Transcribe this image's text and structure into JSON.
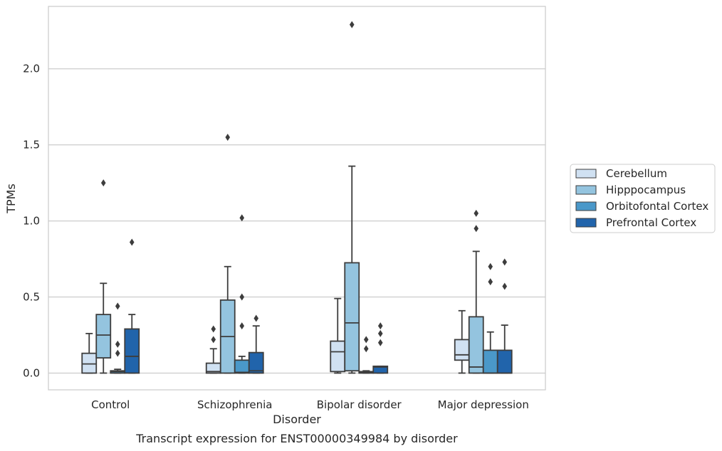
{
  "chart_data": {
    "type": "box",
    "title": "",
    "caption": "Transcript expression for ENST00000349984 by disorder",
    "xlabel": "Disorder",
    "ylabel": "TPMs",
    "ylim": [
      -0.11,
      2.41
    ],
    "yticks": [
      "0.0",
      "0.5",
      "1.0",
      "1.5",
      "2.0"
    ],
    "grid": "horizontal",
    "legend_position": "right",
    "categories": [
      "Control",
      "Schizophrenia",
      "Bipolar disorder",
      "Major depression"
    ],
    "series": [
      {
        "name": "Cerebellum",
        "color": "#d0e1f2",
        "boxes": [
          {
            "whislo": 0.0,
            "q1": 0.0,
            "med": 0.06,
            "q3": 0.13,
            "whishi": 0.26,
            "fliers": []
          },
          {
            "whislo": 0.0,
            "q1": 0.0,
            "med": 0.01,
            "q3": 0.065,
            "whishi": 0.16,
            "fliers": [
              0.22,
              0.29
            ]
          },
          {
            "whislo": 0.0,
            "q1": 0.01,
            "med": 0.14,
            "q3": 0.21,
            "whishi": 0.49,
            "fliers": []
          },
          {
            "whislo": 0.0,
            "q1": 0.085,
            "med": 0.12,
            "q3": 0.22,
            "whishi": 0.41,
            "fliers": []
          }
        ]
      },
      {
        "name": "Hipppocampus",
        "color": "#94c4df",
        "boxes": [
          {
            "whislo": 0.0,
            "q1": 0.1,
            "med": 0.25,
            "q3": 0.385,
            "whishi": 0.59,
            "fliers": [
              1.25
            ]
          },
          {
            "whislo": 0.0,
            "q1": 0.0,
            "med": 0.24,
            "q3": 0.48,
            "whishi": 0.7,
            "fliers": [
              1.55
            ]
          },
          {
            "whislo": 0.0,
            "q1": 0.015,
            "med": 0.33,
            "q3": 0.725,
            "whishi": 1.36,
            "fliers": [
              2.29
            ]
          },
          {
            "whislo": 0.0,
            "q1": 0.0,
            "med": 0.04,
            "q3": 0.37,
            "whishi": 0.8,
            "fliers": [
              0.95,
              1.05
            ]
          }
        ]
      },
      {
        "name": "Orbitofontal Cortex",
        "color": "#4a98c9",
        "boxes": [
          {
            "whislo": 0.0,
            "q1": 0.0,
            "med": 0.01,
            "q3": 0.015,
            "whishi": 0.025,
            "fliers": [
              0.13,
              0.19,
              0.44
            ]
          },
          {
            "whislo": 0.0,
            "q1": 0.0,
            "med": 0.005,
            "q3": 0.085,
            "whishi": 0.11,
            "fliers": [
              0.31,
              0.5,
              1.02
            ]
          },
          {
            "whislo": 0.0,
            "q1": 0.0,
            "med": 0.005,
            "q3": 0.01,
            "whishi": 0.015,
            "fliers": [
              0.16,
              0.22
            ]
          },
          {
            "whislo": 0.0,
            "q1": 0.0,
            "med": 0.0,
            "q3": 0.15,
            "whishi": 0.27,
            "fliers": [
              0.6,
              0.7
            ]
          }
        ]
      },
      {
        "name": "Prefrontal Cortex",
        "color": "#2164ab",
        "boxes": [
          {
            "whislo": 0.0,
            "q1": 0.0,
            "med": 0.11,
            "q3": 0.29,
            "whishi": 0.385,
            "fliers": [
              0.86
            ]
          },
          {
            "whislo": 0.0,
            "q1": 0.0,
            "med": 0.015,
            "q3": 0.135,
            "whishi": 0.31,
            "fliers": [
              0.36
            ]
          },
          {
            "whislo": 0.0,
            "q1": 0.0,
            "med": 0.04,
            "q3": 0.045,
            "whishi": 0.045,
            "fliers": [
              0.2,
              0.26,
              0.31
            ]
          },
          {
            "whislo": 0.0,
            "q1": 0.0,
            "med": 0.0,
            "q3": 0.15,
            "whishi": 0.315,
            "fliers": [
              0.57,
              0.73
            ]
          }
        ]
      }
    ]
  }
}
